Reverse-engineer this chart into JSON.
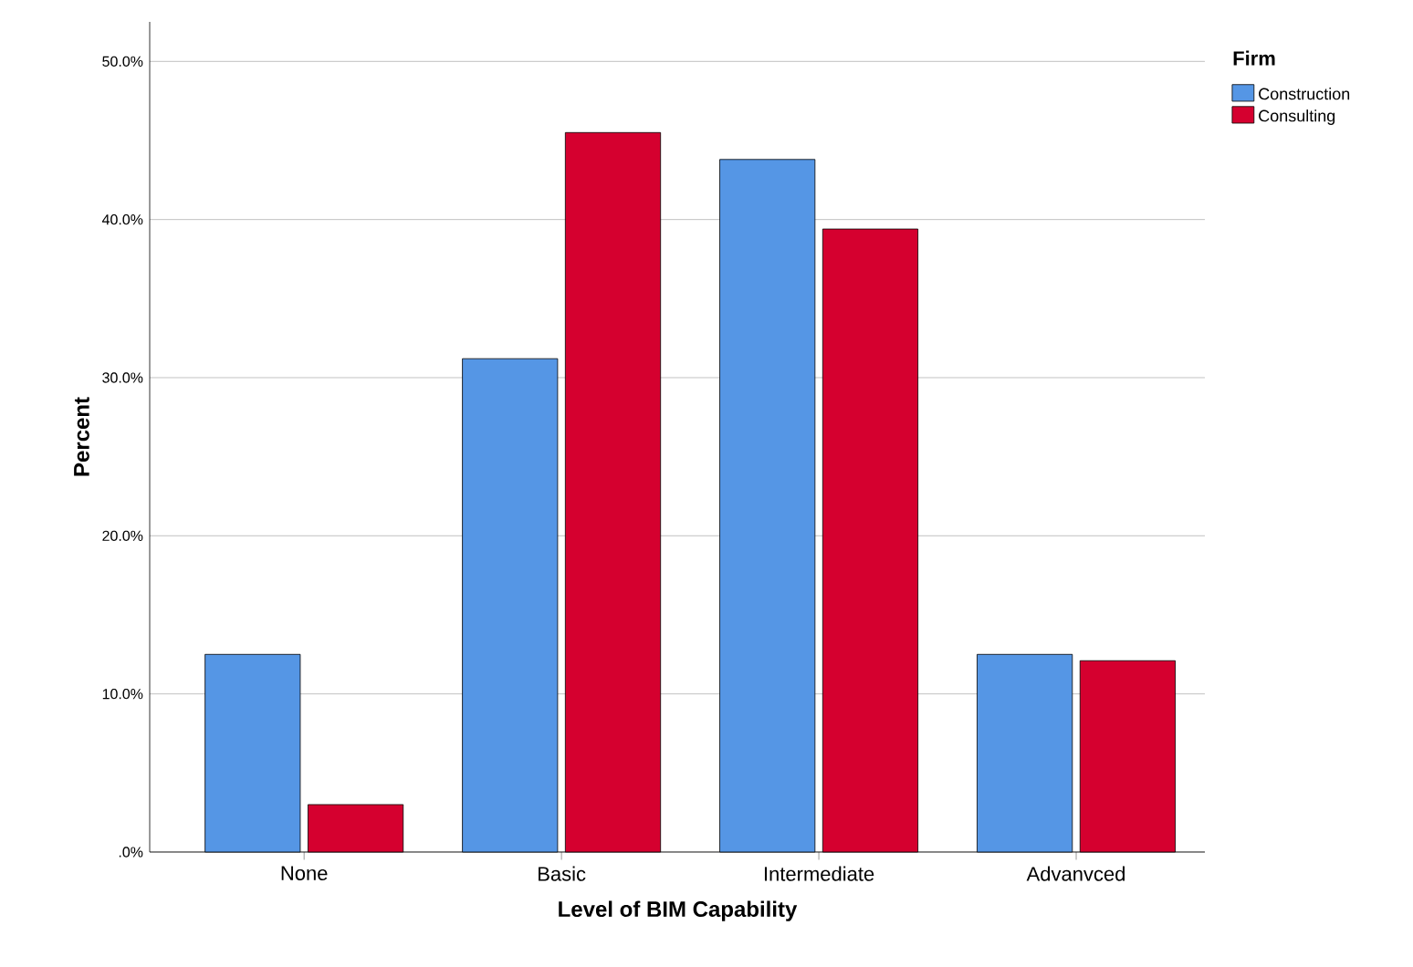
{
  "chart_data": {
    "type": "bar",
    "xlabel": "Level of BIM Capability",
    "ylabel": "Percent",
    "legend_title": "Firm",
    "categories": [
      "None",
      "Basic",
      "Intermediate",
      "Advanvced"
    ],
    "series": [
      {
        "name": "Construction",
        "color": "#5596e5",
        "values": [
          12.5,
          31.2,
          43.8,
          12.5
        ]
      },
      {
        "name": "Consulting",
        "color": "#d5002f",
        "values": [
          3.0,
          45.5,
          39.4,
          12.1
        ]
      }
    ],
    "ylim": [
      0,
      52.5
    ],
    "yticks": [
      {
        "value": 0,
        "label": ".0%"
      },
      {
        "value": 10,
        "label": "10.0%"
      },
      {
        "value": 20,
        "label": "20.0%"
      },
      {
        "value": 30,
        "label": "30.0%"
      },
      {
        "value": 40,
        "label": "40.0%"
      },
      {
        "value": 50,
        "label": "50.0%"
      }
    ],
    "grid": "y",
    "legend": "top right"
  }
}
